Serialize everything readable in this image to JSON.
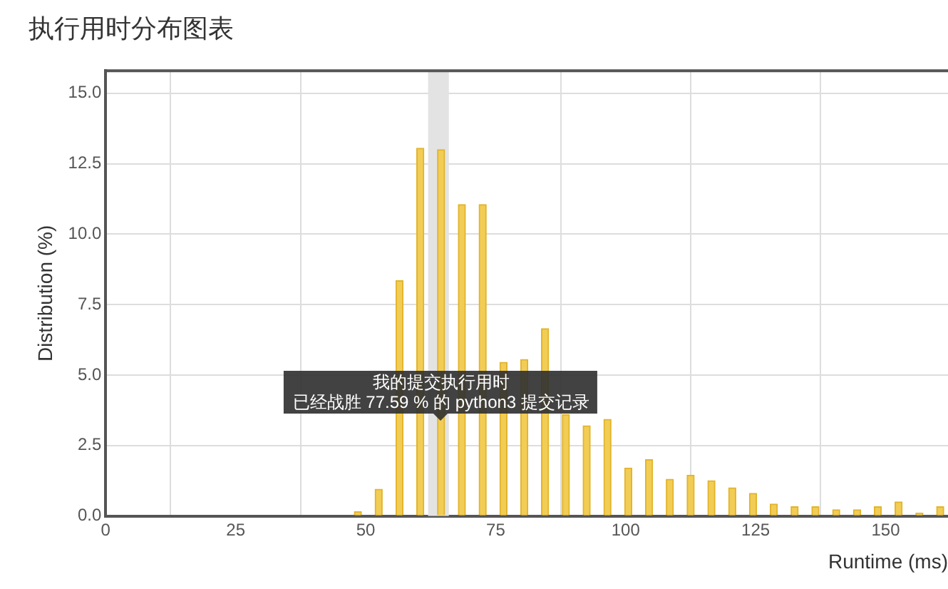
{
  "chart_data": {
    "type": "bar",
    "title": "执行用时分布图表",
    "xlabel": "Runtime (ms)",
    "ylabel": "Distribution (%)",
    "x": [
      48.5,
      52.5,
      56.5,
      60.5,
      64.5,
      68.5,
      72.5,
      76.5,
      80.5,
      84.5,
      88.5,
      92.5,
      96.5,
      100.5,
      104.5,
      108.5,
      112.5,
      116.5,
      120.5,
      124.5,
      128.5,
      132.5,
      136.5,
      140.5,
      144.5,
      148.5,
      152.5,
      156.5,
      160.5
    ],
    "values": [
      0.15,
      0.95,
      8.35,
      13.05,
      13.0,
      11.05,
      11.05,
      5.45,
      5.55,
      6.65,
      3.6,
      3.2,
      3.43,
      1.7,
      2.0,
      1.3,
      1.45,
      1.25,
      1.0,
      0.8,
      0.42,
      0.33,
      0.33,
      0.22,
      0.22,
      0.33,
      0.5,
      0.1,
      0.33
    ],
    "color": "#f2cd55",
    "xlim": [
      0,
      162
    ],
    "xticks": [
      0,
      25,
      50,
      75,
      100,
      125,
      150
    ],
    "ylim": [
      0,
      15.8
    ],
    "yticks": [
      {
        "value": 0,
        "label": "0.0"
      },
      {
        "value": 2.5,
        "label": "2.5"
      },
      {
        "value": 5,
        "label": "5.0"
      },
      {
        "value": 7.5,
        "label": "7.5"
      },
      {
        "value": 10,
        "label": "10.0"
      },
      {
        "value": 12.5,
        "label": "12.5"
      },
      {
        "value": 15,
        "label": "15.0"
      }
    ],
    "grid": true,
    "legend": false,
    "bands": [
      {
        "axis": "x",
        "from": 62,
        "to": 66,
        "color": "#e3e3e3"
      }
    ],
    "annotations": [
      {
        "text": "我的提交执行用时",
        "x": 64.5,
        "y": 3.4
      },
      {
        "text": "已经战胜 77.59 % 的 python3 提交记录",
        "x": 64.5,
        "y": 3.4
      }
    ]
  }
}
